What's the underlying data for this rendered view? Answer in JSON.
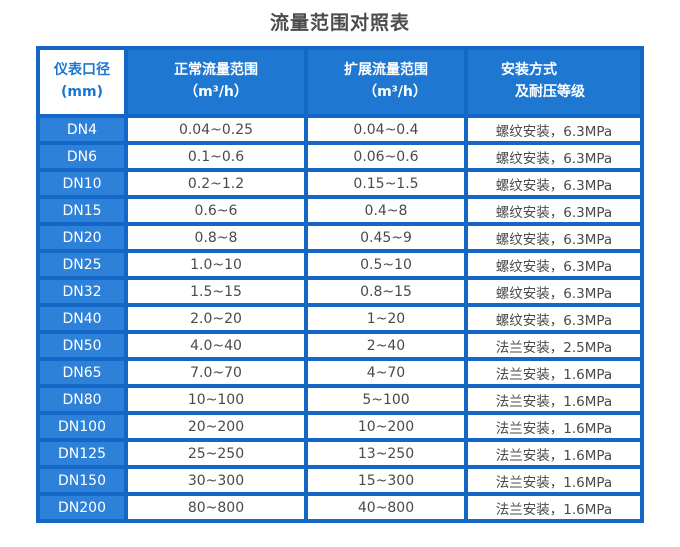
{
  "title": "流量范围对照表",
  "colors": {
    "grid_blue": "#1467c6",
    "header_blue": "#1e78d2",
    "row_label_blue": "#2e81d9",
    "first_header_text_blue": "#1b76d1",
    "cell_text": "#4a4a4a",
    "header_text": "#ffffff"
  },
  "table": {
    "headers": {
      "col1": {
        "line1": "仪表口径",
        "line2": "(mm)"
      },
      "col2": {
        "line1": "正常流量范围",
        "line2": "（m³/h）"
      },
      "col3": {
        "line1": "扩展流量范围",
        "line2": "（m³/h）"
      },
      "col4": {
        "line1": "安装方式",
        "line2": "及耐压等级"
      }
    },
    "rows": [
      {
        "dn": "DN4",
        "normal": "0.04~0.25",
        "extended": "0.04~0.4",
        "install": "螺纹安装，6.3MPa"
      },
      {
        "dn": "DN6",
        "normal": "0.1~0.6",
        "extended": "0.06~0.6",
        "install": "螺纹安装，6.3MPa"
      },
      {
        "dn": "DN10",
        "normal": "0.2~1.2",
        "extended": "0.15~1.5",
        "install": "螺纹安装，6.3MPa"
      },
      {
        "dn": "DN15",
        "normal": "0.6~6",
        "extended": "0.4~8",
        "install": "螺纹安装，6.3MPa"
      },
      {
        "dn": "DN20",
        "normal": "0.8~8",
        "extended": "0.45~9",
        "install": "螺纹安装，6.3MPa"
      },
      {
        "dn": "DN25",
        "normal": "1.0~10",
        "extended": "0.5~10",
        "install": "螺纹安装，6.3MPa"
      },
      {
        "dn": "DN32",
        "normal": "1.5~15",
        "extended": "0.8~15",
        "install": "螺纹安装，6.3MPa"
      },
      {
        "dn": "DN40",
        "normal": "2.0~20",
        "extended": "1~20",
        "install": "螺纹安装，6.3MPa"
      },
      {
        "dn": "DN50",
        "normal": "4.0~40",
        "extended": "2~40",
        "install": "法兰安装，2.5MPa"
      },
      {
        "dn": "DN65",
        "normal": "7.0~70",
        "extended": "4~70",
        "install": "法兰安装，1.6MPa"
      },
      {
        "dn": "DN80",
        "normal": "10~100",
        "extended": "5~100",
        "install": "法兰安装，1.6MPa"
      },
      {
        "dn": "DN100",
        "normal": "20~200",
        "extended": "10~200",
        "install": "法兰安装，1.6MPa"
      },
      {
        "dn": "DN125",
        "normal": "25~250",
        "extended": "13~250",
        "install": "法兰安装，1.6MPa"
      },
      {
        "dn": "DN150",
        "normal": "30~300",
        "extended": "15~300",
        "install": "法兰安装，1.6MPa"
      },
      {
        "dn": "DN200",
        "normal": "80~800",
        "extended": "40~800",
        "install": "法兰安装，1.6MPa"
      }
    ]
  }
}
